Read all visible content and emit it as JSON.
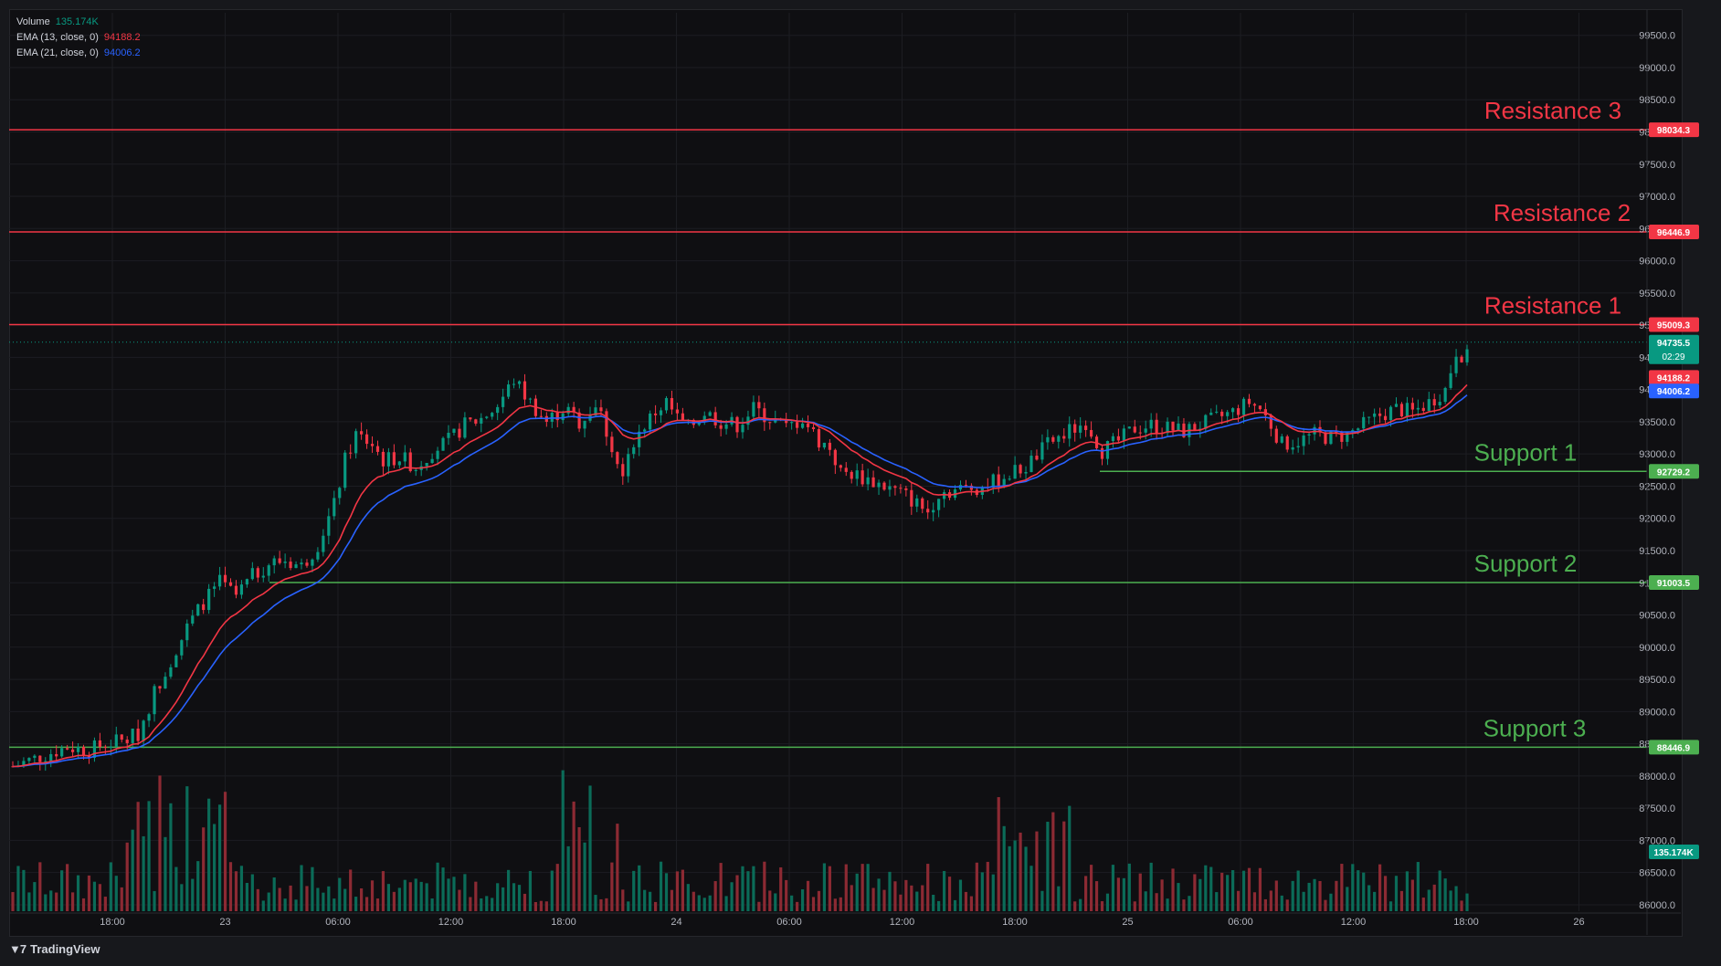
{
  "legend": {
    "volume_label": "Volume",
    "volume_value": "135.174K",
    "ema13_label": "EMA (13, close, 0)",
    "ema13_value": "94188.2",
    "ema21_label": "EMA (21, close, 0)",
    "ema21_value": "94006.2"
  },
  "footer": {
    "brand": "TradingView"
  },
  "colors": {
    "up": "#089981",
    "down": "#f23645",
    "ema13": "#f23645",
    "ema21": "#2962ff",
    "support": "#4caf50",
    "resistance": "#f23645",
    "background": "#0f0f12"
  },
  "chart_data": {
    "type": "candlestick",
    "symbol_interval": "intraday",
    "y_ticks": [
      "99500.0",
      "99000.0",
      "98500.0",
      "98000.0",
      "97500.0",
      "97000.0",
      "96500.0",
      "96000.0",
      "95500.0",
      "95000.0",
      "94500.0",
      "94000.0",
      "93500.0",
      "93000.0",
      "92500.0",
      "92000.0",
      "91500.0",
      "91000.0",
      "90500.0",
      "90000.0",
      "89500.0",
      "89000.0",
      "88500.0",
      "88000.0",
      "87500.0",
      "87000.0",
      "86500.0",
      "86000.0"
    ],
    "ylim": [
      85900,
      99850
    ],
    "x_ticks": [
      "18:00",
      "23",
      "06:00",
      "12:00",
      "18:00",
      "24",
      "06:00",
      "12:00",
      "18:00",
      "25",
      "06:00",
      "12:00",
      "18:00",
      "26"
    ],
    "levels": [
      {
        "name": "Resistance 3",
        "value": 98034.3,
        "label": "98034.3",
        "kind": "resistance"
      },
      {
        "name": "Resistance 2",
        "value": 96446.9,
        "label": "96446.9",
        "kind": "resistance"
      },
      {
        "name": "Resistance 1",
        "value": 95009.3,
        "label": "95009.3",
        "kind": "resistance"
      },
      {
        "name": "Support 1",
        "value": 92729.2,
        "label": "92729.2",
        "kind": "support"
      },
      {
        "name": "Support 2",
        "value": 91003.5,
        "label": "91003.5",
        "kind": "support"
      },
      {
        "name": "Support 3",
        "value": 88446.9,
        "label": "88446.9",
        "kind": "support"
      }
    ],
    "last_price": {
      "value": 94735.5,
      "label": "94735.5",
      "countdown": "02:29"
    },
    "ema13_last": {
      "value": 94188.2,
      "label": "94188.2"
    },
    "ema21_last": {
      "value": 94006.2,
      "label": "94006.2"
    },
    "volume_last": {
      "label": "135.174K"
    },
    "price_path": [
      [
        0,
        88150
      ],
      [
        5,
        88300
      ],
      [
        10,
        88450
      ],
      [
        14,
        88400
      ],
      [
        17,
        88500
      ],
      [
        20,
        88550
      ],
      [
        23,
        88650
      ],
      [
        26,
        89300
      ],
      [
        29,
        89800
      ],
      [
        32,
        90300
      ],
      [
        35,
        90700
      ],
      [
        38,
        91000
      ],
      [
        41,
        90800
      ],
      [
        44,
        91100
      ],
      [
        47,
        91300
      ],
      [
        50,
        91350
      ],
      [
        53,
        91250
      ],
      [
        56,
        91600
      ],
      [
        59,
        92200
      ],
      [
        61,
        92900
      ],
      [
        63,
        93300
      ],
      [
        66,
        93150
      ],
      [
        68,
        92900
      ],
      [
        71,
        92950
      ],
      [
        74,
        92800
      ],
      [
        77,
        93050
      ],
      [
        80,
        93200
      ],
      [
        83,
        93450
      ],
      [
        86,
        93550
      ],
      [
        89,
        93750
      ],
      [
        92,
        94150
      ],
      [
        95,
        93800
      ],
      [
        98,
        93500
      ],
      [
        101,
        93700
      ],
      [
        104,
        93500
      ],
      [
        107,
        93750
      ],
      [
        108,
        93600
      ],
      [
        110,
        93100
      ],
      [
        112,
        92600
      ],
      [
        114,
        93200
      ],
      [
        116,
        93450
      ],
      [
        118,
        93650
      ],
      [
        120,
        93800
      ],
      [
        122,
        93550
      ],
      [
        124,
        93400
      ],
      [
        127,
        93650
      ],
      [
        130,
        93500
      ],
      [
        133,
        93450
      ],
      [
        136,
        93700
      ],
      [
        139,
        93550
      ],
      [
        142,
        93400
      ],
      [
        145,
        93550
      ],
      [
        148,
        93200
      ],
      [
        150,
        93100
      ],
      [
        152,
        92700
      ],
      [
        154,
        92700
      ],
      [
        160,
        92500
      ],
      [
        164,
        92350
      ],
      [
        168,
        92100
      ],
      [
        170,
        92400
      ],
      [
        174,
        92450
      ],
      [
        178,
        92500
      ],
      [
        182,
        92650
      ],
      [
        186,
        92800
      ],
      [
        190,
        93150
      ],
      [
        194,
        93350
      ],
      [
        197,
        93500
      ],
      [
        200,
        93050
      ],
      [
        203,
        93200
      ],
      [
        206,
        93400
      ],
      [
        209,
        93450
      ],
      [
        212,
        93400
      ],
      [
        215,
        93350
      ],
      [
        218,
        93450
      ],
      [
        221,
        93550
      ],
      [
        224,
        93650
      ],
      [
        227,
        93800
      ],
      [
        229,
        93700
      ],
      [
        231,
        93450
      ],
      [
        233,
        93150
      ],
      [
        236,
        93200
      ],
      [
        239,
        93300
      ],
      [
        242,
        93250
      ],
      [
        245,
        93300
      ],
      [
        248,
        93450
      ],
      [
        251,
        93600
      ],
      [
        254,
        93700
      ],
      [
        257,
        93650
      ],
      [
        260,
        93800
      ],
      [
        263,
        94000
      ],
      [
        265,
        94600
      ],
      [
        267,
        94500
      ]
    ],
    "volume_series_note": "per-bar volume shown as histogram at chart bottom"
  }
}
